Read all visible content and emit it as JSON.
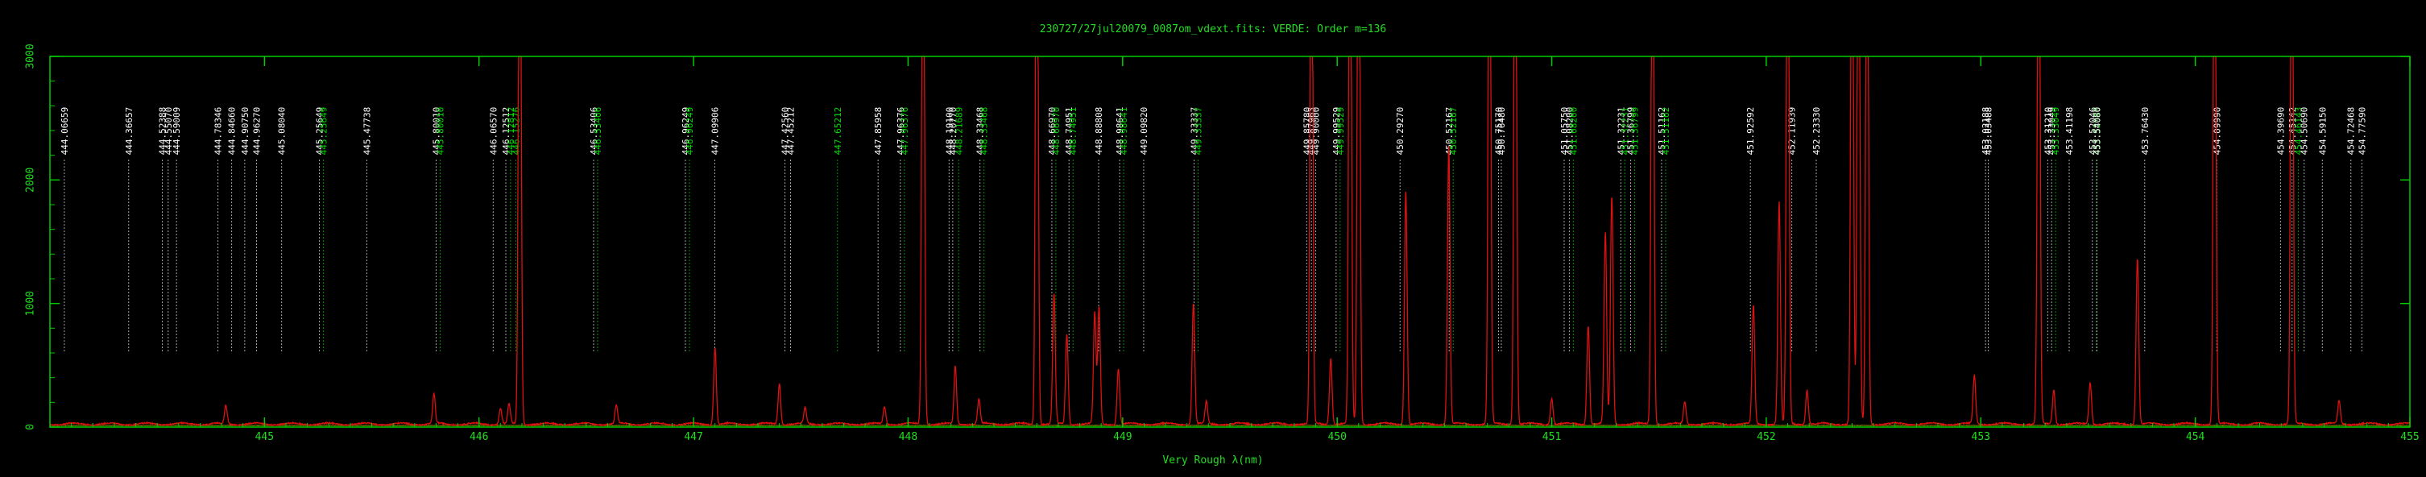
{
  "chart_data": {
    "type": "line",
    "title": "230727/27jul20079_0087om_vdext.fits: VERDE: Order m=136",
    "xlabel": "Very Rough λ(nm)",
    "ylabel": "",
    "xlim": [
      444.0,
      455.0
    ],
    "ylim": [
      0,
      3000
    ],
    "x_ticks": [
      445,
      446,
      447,
      448,
      449,
      450,
      451,
      452,
      453,
      454,
      455
    ],
    "y_ticks": [
      0,
      1000,
      2000,
      3000
    ],
    "y_tick_labels": [
      "0",
      "1000",
      "2000",
      "3000"
    ],
    "grid": false,
    "colors": {
      "background": "#000000",
      "frame": "#00cc00",
      "text": "#22dd22",
      "spectrum": "#dd1111",
      "continuum": "#8a8a00",
      "line_white": "#ffffff",
      "line_green": "#00dd00"
    },
    "series": [
      {
        "kind": "emission-spectrum",
        "baseline": 20,
        "peaks": [
          [
            444.82,
            150
          ],
          [
            445.79,
            240
          ],
          [
            446.1,
            130
          ],
          [
            446.14,
            160
          ],
          [
            446.19,
            3000
          ],
          [
            446.64,
            150
          ],
          [
            447.1,
            620
          ],
          [
            447.4,
            330
          ],
          [
            447.52,
            130
          ],
          [
            447.89,
            140
          ],
          [
            448.07,
            3000
          ],
          [
            448.22,
            470
          ],
          [
            448.33,
            200
          ],
          [
            448.6,
            3000
          ],
          [
            448.68,
            1050
          ],
          [
            448.74,
            730
          ],
          [
            448.87,
            900
          ],
          [
            448.89,
            950
          ],
          [
            448.98,
            450
          ],
          [
            449.33,
            980
          ],
          [
            449.39,
            180
          ],
          [
            449.88,
            3000
          ],
          [
            449.97,
            540
          ],
          [
            450.06,
            3000
          ],
          [
            450.1,
            3000
          ],
          [
            450.32,
            1900
          ],
          [
            450.52,
            2250
          ],
          [
            450.71,
            3000
          ],
          [
            450.83,
            3000
          ],
          [
            451.0,
            210
          ],
          [
            451.17,
            800
          ],
          [
            451.25,
            1550
          ],
          [
            451.28,
            1850
          ],
          [
            451.47,
            3000
          ],
          [
            451.62,
            180
          ],
          [
            451.94,
            960
          ],
          [
            452.06,
            1800
          ],
          [
            452.1,
            3000
          ],
          [
            452.19,
            280
          ],
          [
            452.4,
            3000
          ],
          [
            452.43,
            3000
          ],
          [
            452.47,
            3000
          ],
          [
            452.97,
            390
          ],
          [
            453.27,
            3000
          ],
          [
            453.34,
            280
          ],
          [
            453.51,
            340
          ],
          [
            453.73,
            1350
          ],
          [
            454.09,
            3000
          ],
          [
            454.45,
            3000
          ],
          [
            454.67,
            190
          ]
        ]
      }
    ],
    "line_ids": [
      {
        "label": "444.06659",
        "x": 444.067,
        "color": "white"
      },
      {
        "label": "444.36657",
        "x": 444.367,
        "color": "white"
      },
      {
        "label": "444.52388",
        "x": 444.524,
        "color": "white"
      },
      {
        "label": "444.55070",
        "x": 444.551,
        "color": "white"
      },
      {
        "label": "444.59009",
        "x": 444.59,
        "color": "white"
      },
      {
        "label": "444.78346",
        "x": 444.783,
        "color": "white"
      },
      {
        "label": "444.84660",
        "x": 444.847,
        "color": "white"
      },
      {
        "label": "444.90750",
        "x": 444.908,
        "color": "white"
      },
      {
        "label": "444.96270",
        "x": 444.963,
        "color": "white"
      },
      {
        "label": "445.08040",
        "x": 445.08,
        "color": "white"
      },
      {
        "label": "445.25649",
        "x": 445.256,
        "color": "white"
      },
      {
        "label": "445.25649",
        "x": 445.256,
        "color": "green"
      },
      {
        "label": "445.47738",
        "x": 445.477,
        "color": "white"
      },
      {
        "label": "445.80010",
        "x": 445.8,
        "color": "white"
      },
      {
        "label": "445.80010",
        "x": 445.8,
        "color": "green"
      },
      {
        "label": "446.06570",
        "x": 446.066,
        "color": "white"
      },
      {
        "label": "446.12512",
        "x": 446.125,
        "color": "white"
      },
      {
        "label": "446.12812",
        "x": 446.128,
        "color": "green"
      },
      {
        "label": "446.15276",
        "x": 446.153,
        "color": "green"
      },
      {
        "label": "446.53406",
        "x": 446.534,
        "color": "white"
      },
      {
        "label": "446.53406",
        "x": 446.534,
        "color": "green"
      },
      {
        "label": "446.96249",
        "x": 446.962,
        "color": "white"
      },
      {
        "label": "446.96249",
        "x": 446.962,
        "color": "green"
      },
      {
        "label": "447.09906",
        "x": 447.099,
        "color": "white"
      },
      {
        "label": "447.42560",
        "x": 447.426,
        "color": "white"
      },
      {
        "label": "447.45212",
        "x": 447.452,
        "color": "white"
      },
      {
        "label": "447.65212",
        "x": 447.652,
        "color": "green"
      },
      {
        "label": "447.85958",
        "x": 447.86,
        "color": "white"
      },
      {
        "label": "447.96376",
        "x": 447.964,
        "color": "white"
      },
      {
        "label": "447.96376",
        "x": 447.964,
        "color": "green"
      },
      {
        "label": "448.19100",
        "x": 448.191,
        "color": "white"
      },
      {
        "label": "448.20770",
        "x": 448.208,
        "color": "white"
      },
      {
        "label": "448.21689",
        "x": 448.217,
        "color": "green"
      },
      {
        "label": "448.33468",
        "x": 448.335,
        "color": "white"
      },
      {
        "label": "448.33468",
        "x": 448.335,
        "color": "green"
      },
      {
        "label": "448.66970",
        "x": 448.67,
        "color": "white"
      },
      {
        "label": "448.66970",
        "x": 448.67,
        "color": "green"
      },
      {
        "label": "448.74951",
        "x": 448.75,
        "color": "white"
      },
      {
        "label": "448.74951",
        "x": 448.75,
        "color": "green"
      },
      {
        "label": "448.88808",
        "x": 448.888,
        "color": "white"
      },
      {
        "label": "448.98641",
        "x": 448.986,
        "color": "white"
      },
      {
        "label": "448.98641",
        "x": 448.986,
        "color": "green"
      },
      {
        "label": "449.09820",
        "x": 449.098,
        "color": "white"
      },
      {
        "label": "449.33337",
        "x": 449.333,
        "color": "white"
      },
      {
        "label": "449.33337",
        "x": 449.333,
        "color": "green"
      },
      {
        "label": "449.85780",
        "x": 449.858,
        "color": "white"
      },
      {
        "label": "449.87963",
        "x": 449.88,
        "color": "white"
      },
      {
        "label": "449.90000",
        "x": 449.9,
        "color": "white"
      },
      {
        "label": "449.99529",
        "x": 449.995,
        "color": "white"
      },
      {
        "label": "449.99529",
        "x": 449.995,
        "color": "green"
      },
      {
        "label": "450.29270",
        "x": 450.293,
        "color": "white"
      },
      {
        "label": "450.52167",
        "x": 450.522,
        "color": "white"
      },
      {
        "label": "450.52167",
        "x": 450.522,
        "color": "green"
      },
      {
        "label": "450.75170",
        "x": 450.752,
        "color": "white"
      },
      {
        "label": "450.76480",
        "x": 450.765,
        "color": "white"
      },
      {
        "label": "451.05750",
        "x": 451.058,
        "color": "white"
      },
      {
        "label": "451.08200",
        "x": 451.082,
        "color": "white"
      },
      {
        "label": "451.08200",
        "x": 451.082,
        "color": "green"
      },
      {
        "label": "451.32231",
        "x": 451.322,
        "color": "white"
      },
      {
        "label": "451.32231",
        "x": 451.322,
        "color": "green"
      },
      {
        "label": "451.36799",
        "x": 451.368,
        "color": "white"
      },
      {
        "label": "451.36799",
        "x": 451.368,
        "color": "green"
      },
      {
        "label": "451.51162",
        "x": 451.512,
        "color": "white"
      },
      {
        "label": "451.51162",
        "x": 451.512,
        "color": "green"
      },
      {
        "label": "451.92592",
        "x": 451.926,
        "color": "white"
      },
      {
        "label": "452.11939",
        "x": 452.119,
        "color": "white"
      },
      {
        "label": "452.23330",
        "x": 452.233,
        "color": "white"
      },
      {
        "label": "453.02188",
        "x": 453.022,
        "color": "white"
      },
      {
        "label": "453.03488",
        "x": 453.035,
        "color": "white"
      },
      {
        "label": "453.31210",
        "x": 453.312,
        "color": "white"
      },
      {
        "label": "453.33049",
        "x": 453.33,
        "color": "white"
      },
      {
        "label": "453.33049",
        "x": 453.33,
        "color": "green"
      },
      {
        "label": "453.41198",
        "x": 453.412,
        "color": "white"
      },
      {
        "label": "453.52046",
        "x": 453.52,
        "color": "white"
      },
      {
        "label": "453.52046",
        "x": 453.52,
        "color": "green"
      },
      {
        "label": "453.54080",
        "x": 453.541,
        "color": "white"
      },
      {
        "label": "453.76430",
        "x": 453.764,
        "color": "white"
      },
      {
        "label": "454.09990",
        "x": 454.1,
        "color": "white"
      },
      {
        "label": "454.39690",
        "x": 454.397,
        "color": "white"
      },
      {
        "label": "454.45142",
        "x": 454.451,
        "color": "white"
      },
      {
        "label": "454.46143",
        "x": 454.461,
        "color": "green"
      },
      {
        "label": "454.50690",
        "x": 454.507,
        "color": "white"
      },
      {
        "label": "454.59150",
        "x": 454.592,
        "color": "white"
      },
      {
        "label": "454.72468",
        "x": 454.725,
        "color": "white"
      },
      {
        "label": "454.77590",
        "x": 454.776,
        "color": "white"
      }
    ]
  }
}
